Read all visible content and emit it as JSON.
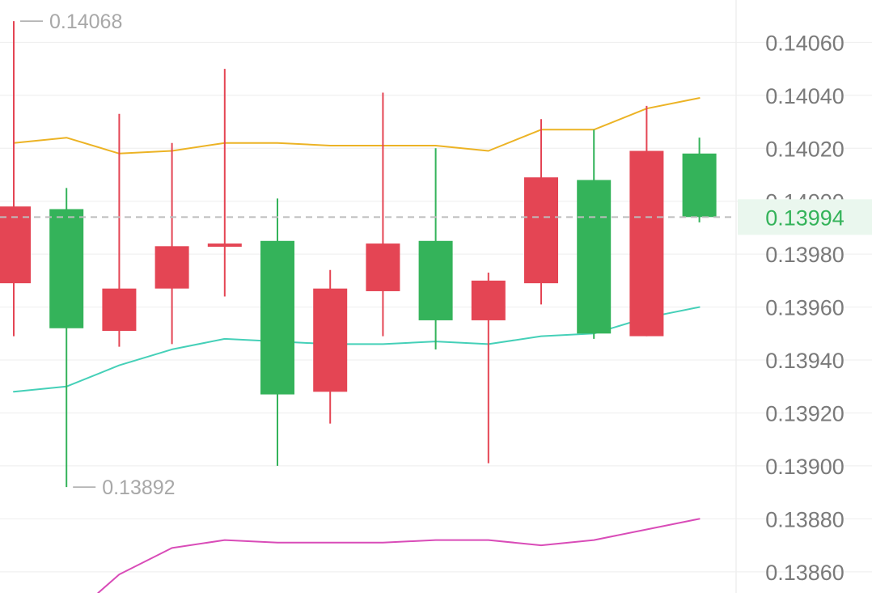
{
  "colors": {
    "up": "#e44554",
    "down": "#34b35a",
    "ma_yellow": "#ecb325",
    "ma_teal": "#45d0b8",
    "ma_magenta": "#d94cb8",
    "grid": "#eeeeee",
    "axis_text": "#7a7a7a",
    "annotation_text": "#a8a8a8",
    "current_price_text": "#34b35a",
    "current_price_bg": "#eaf7ee",
    "dashed_line": "#bdbdbd"
  },
  "chart_data": {
    "type": "candlestick",
    "ylim": [
      0.13852,
      0.14076
    ],
    "y_ticks": [
      "0.14060",
      "0.14040",
      "0.14020",
      "0.14000",
      "0.13980",
      "0.13960",
      "0.13940",
      "0.13920",
      "0.13900",
      "0.13880",
      "0.13860"
    ],
    "current_price": "0.13994",
    "high_annotation": "0.14068",
    "low_annotation": "0.13892",
    "candles": [
      {
        "open": 0.13969,
        "close": 0.13998,
        "high": 0.14068,
        "low": 0.13949
      },
      {
        "open": 0.13997,
        "close": 0.13952,
        "high": 0.14005,
        "low": 0.13892
      },
      {
        "open": 0.13951,
        "close": 0.13967,
        "high": 0.14033,
        "low": 0.13945
      },
      {
        "open": 0.13967,
        "close": 0.13983,
        "high": 0.14022,
        "low": 0.13946
      },
      {
        "open": 0.13983,
        "close": 0.13984,
        "high": 0.1405,
        "low": 0.13964
      },
      {
        "open": 0.13985,
        "close": 0.13927,
        "high": 0.14001,
        "low": 0.139
      },
      {
        "open": 0.13928,
        "close": 0.13967,
        "high": 0.13974,
        "low": 0.13916
      },
      {
        "open": 0.13966,
        "close": 0.13984,
        "high": 0.14041,
        "low": 0.13949
      },
      {
        "open": 0.13985,
        "close": 0.13955,
        "high": 0.1402,
        "low": 0.13944
      },
      {
        "open": 0.13955,
        "close": 0.1397,
        "high": 0.13973,
        "low": 0.13901
      },
      {
        "open": 0.13969,
        "close": 0.14009,
        "high": 0.14031,
        "low": 0.13961
      },
      {
        "open": 0.14008,
        "close": 0.1395,
        "high": 0.14027,
        "low": 0.13948
      },
      {
        "open": 0.13949,
        "close": 0.14019,
        "high": 0.14036,
        "low": 0.13949
      },
      {
        "open": 0.14018,
        "close": 0.13994,
        "high": 0.14024,
        "low": 0.13992
      }
    ],
    "ma_lines": [
      {
        "color_key": "ma_yellow",
        "x": [
          0,
          1,
          2,
          3,
          4,
          5,
          6,
          7,
          8,
          9,
          10,
          11,
          12,
          13
        ],
        "values": [
          0.14022,
          0.14024,
          0.14018,
          0.14019,
          0.14022,
          0.14022,
          0.14021,
          0.14021,
          0.14021,
          0.14019,
          0.14027,
          0.14027,
          0.14035,
          0.14039
        ]
      },
      {
        "color_key": "ma_teal",
        "x": [
          0,
          1,
          2,
          3,
          4,
          5,
          6,
          7,
          8,
          9,
          10,
          11,
          12,
          13
        ],
        "values": [
          0.13928,
          0.1393,
          0.13938,
          0.13944,
          0.13948,
          0.13947,
          0.13946,
          0.13946,
          0.13947,
          0.13946,
          0.13949,
          0.1395,
          0.13956,
          0.1396
        ]
      },
      {
        "color_key": "ma_magenta",
        "x": [
          1.6,
          2,
          3,
          4,
          5,
          6,
          7,
          8,
          9,
          10,
          11,
          12,
          13
        ],
        "values": [
          0.13852,
          0.13859,
          0.13869,
          0.13872,
          0.13871,
          0.13871,
          0.13871,
          0.13872,
          0.13872,
          0.1387,
          0.13872,
          0.13876,
          0.1388
        ]
      }
    ]
  }
}
